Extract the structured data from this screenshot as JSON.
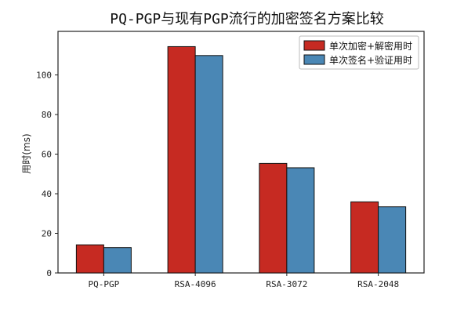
{
  "chart_data": {
    "type": "bar",
    "title": "PQ-PGP与现有PGP流行的加密签名方案比较",
    "xlabel": "",
    "ylabel": "用时(ms)",
    "categories": [
      "PQ-PGP",
      "RSA-4096",
      "RSA-3072",
      "RSA-2048"
    ],
    "series": [
      {
        "name": "单次加密+解密用时",
        "color": "#c62a22",
        "values": [
          14.2,
          114.3,
          55.3,
          35.9
        ]
      },
      {
        "name": "单次签名+验证用时",
        "color": "#4a87b5",
        "values": [
          12.8,
          109.8,
          53.1,
          33.4
        ]
      }
    ],
    "ylim": [
      0,
      122
    ],
    "yticks": [
      0,
      20,
      40,
      60,
      80,
      100
    ],
    "grid": false,
    "legend_position": "top-right"
  }
}
